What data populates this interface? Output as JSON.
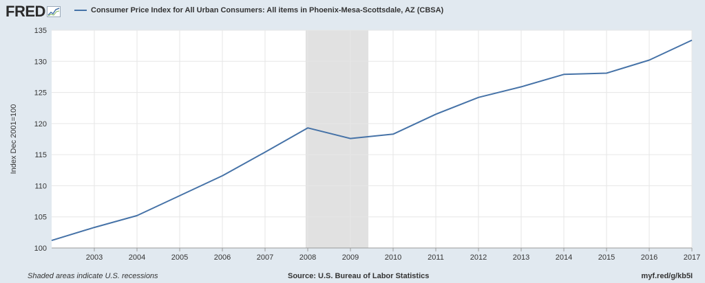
{
  "brand": {
    "logo_text": "FRED"
  },
  "chart_data": {
    "type": "line",
    "title": "Consumer Price Index for All Urban Consumers: All items in Phoenix-Mesa-Scottsdale, AZ (CBSA)",
    "ylabel": "Index Dec 2001=100",
    "xlabel": "",
    "ylim": [
      100,
      135
    ],
    "xlim": [
      2002,
      2017
    ],
    "yticks": [
      100,
      105,
      110,
      115,
      120,
      125,
      130,
      135
    ],
    "xticks": [
      2003,
      2004,
      2005,
      2006,
      2007,
      2008,
      2009,
      2010,
      2011,
      2012,
      2013,
      2014,
      2015,
      2016,
      2017
    ],
    "grid": true,
    "legend": "top-left",
    "recession": {
      "start": 2007.95,
      "end": 2009.42
    },
    "series": [
      {
        "name": "Consumer Price Index for All Urban Consumers: All items in Phoenix-Mesa-Scottsdale, AZ (CBSA)",
        "color": "#4572a7",
        "x": [
          2002,
          2003,
          2004,
          2005,
          2006,
          2007,
          2008,
          2009,
          2010,
          2011,
          2012,
          2013,
          2014,
          2015,
          2016,
          2017
        ],
        "values": [
          101.2,
          103.3,
          105.2,
          108.4,
          111.6,
          115.4,
          119.3,
          117.6,
          118.3,
          121.5,
          124.2,
          125.9,
          127.9,
          128.1,
          130.2,
          133.4
        ]
      }
    ]
  },
  "footer": {
    "recession_note": "Shaded areas indicate U.S. recessions",
    "source": "Source: U.S. Bureau of Labor Statistics",
    "short_url": "myf.red/g/kb5I"
  }
}
